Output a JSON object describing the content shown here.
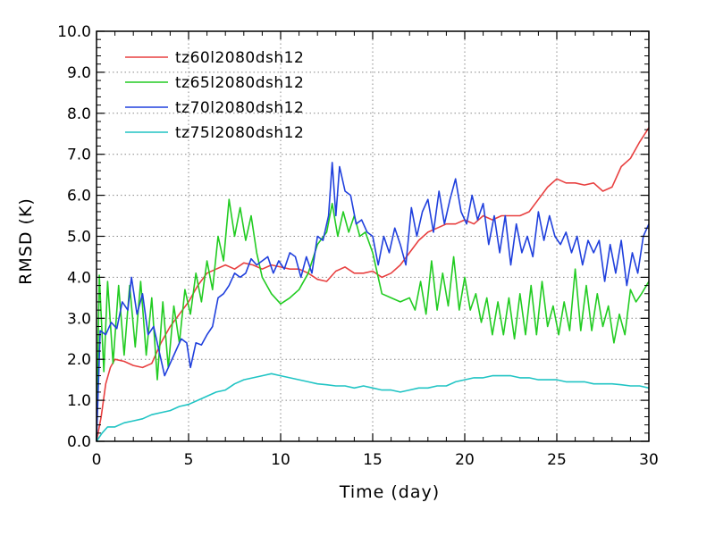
{
  "chart_data": {
    "type": "line",
    "xlabel": "Time (day)",
    "ylabel": "RMSD (K)",
    "xlim": [
      0,
      30
    ],
    "ylim": [
      0,
      10
    ],
    "grid": true,
    "legend_position": "top-left",
    "x_ticks": [
      "0",
      "5",
      "10",
      "15",
      "20",
      "25",
      "30"
    ],
    "y_ticks": [
      "0.0",
      "1.0",
      "2.0",
      "3.0",
      "4.0",
      "5.0",
      "6.0",
      "7.0",
      "8.0",
      "9.0",
      "10.0"
    ],
    "series": [
      {
        "name": "tz60l2080dsh12",
        "color": "#e84040",
        "points": [
          [
            0,
            0
          ],
          [
            0.25,
            0.6
          ],
          [
            0.5,
            1.4
          ],
          [
            0.75,
            1.8
          ],
          [
            1,
            2.0
          ],
          [
            1.5,
            1.95
          ],
          [
            2,
            1.85
          ],
          [
            2.5,
            1.8
          ],
          [
            3,
            1.9
          ],
          [
            3.5,
            2.4
          ],
          [
            4,
            2.8
          ],
          [
            4.5,
            3.1
          ],
          [
            5,
            3.4
          ],
          [
            5.5,
            3.8
          ],
          [
            6,
            4.1
          ],
          [
            6.5,
            4.2
          ],
          [
            7,
            4.3
          ],
          [
            7.5,
            4.2
          ],
          [
            8,
            4.35
          ],
          [
            8.5,
            4.3
          ],
          [
            9,
            4.2
          ],
          [
            9.5,
            4.3
          ],
          [
            10,
            4.25
          ],
          [
            10.5,
            4.2
          ],
          [
            11,
            4.2
          ],
          [
            11.5,
            4.1
          ],
          [
            12,
            3.95
          ],
          [
            12.5,
            3.9
          ],
          [
            13,
            4.15
          ],
          [
            13.5,
            4.25
          ],
          [
            14,
            4.1
          ],
          [
            14.5,
            4.1
          ],
          [
            15,
            4.15
          ],
          [
            15.5,
            4.0
          ],
          [
            16,
            4.1
          ],
          [
            16.5,
            4.3
          ],
          [
            17,
            4.6
          ],
          [
            17.5,
            4.9
          ],
          [
            18,
            5.1
          ],
          [
            18.5,
            5.2
          ],
          [
            19,
            5.3
          ],
          [
            19.5,
            5.3
          ],
          [
            20,
            5.4
          ],
          [
            20.5,
            5.3
          ],
          [
            21,
            5.5
          ],
          [
            21.5,
            5.4
          ],
          [
            22,
            5.5
          ],
          [
            22.5,
            5.5
          ],
          [
            23,
            5.5
          ],
          [
            23.5,
            5.6
          ],
          [
            24,
            5.9
          ],
          [
            24.5,
            6.2
          ],
          [
            25,
            6.4
          ],
          [
            25.5,
            6.3
          ],
          [
            26,
            6.3
          ],
          [
            26.5,
            6.25
          ],
          [
            27,
            6.3
          ],
          [
            27.5,
            6.1
          ],
          [
            28,
            6.2
          ],
          [
            28.5,
            6.7
          ],
          [
            29,
            6.9
          ],
          [
            29.5,
            7.3
          ],
          [
            30,
            7.65
          ]
        ]
      },
      {
        "name": "tz65l2080dsh12",
        "color": "#22cc22",
        "points": [
          [
            0,
            0
          ],
          [
            0.15,
            4.05
          ],
          [
            0.4,
            1.7
          ],
          [
            0.6,
            3.9
          ],
          [
            0.9,
            1.9
          ],
          [
            1.2,
            3.8
          ],
          [
            1.5,
            2.1
          ],
          [
            1.8,
            3.8
          ],
          [
            2.1,
            2.3
          ],
          [
            2.4,
            3.9
          ],
          [
            2.7,
            2.1
          ],
          [
            3,
            3.5
          ],
          [
            3.3,
            1.5
          ],
          [
            3.6,
            3.4
          ],
          [
            3.9,
            1.8
          ],
          [
            4.2,
            3.3
          ],
          [
            4.5,
            2.4
          ],
          [
            4.8,
            3.7
          ],
          [
            5.1,
            3.1
          ],
          [
            5.4,
            4.1
          ],
          [
            5.7,
            3.4
          ],
          [
            6,
            4.4
          ],
          [
            6.3,
            3.7
          ],
          [
            6.6,
            5.0
          ],
          [
            6.9,
            4.4
          ],
          [
            7.2,
            5.9
          ],
          [
            7.5,
            5.0
          ],
          [
            7.8,
            5.7
          ],
          [
            8.1,
            4.9
          ],
          [
            8.4,
            5.5
          ],
          [
            8.7,
            4.6
          ],
          [
            9,
            4.0
          ],
          [
            9.5,
            3.6
          ],
          [
            10,
            3.35
          ],
          [
            10.5,
            3.5
          ],
          [
            11,
            3.7
          ],
          [
            11.5,
            4.1
          ],
          [
            12,
            4.8
          ],
          [
            12.5,
            5.1
          ],
          [
            12.8,
            5.8
          ],
          [
            13.1,
            5.0
          ],
          [
            13.4,
            5.6
          ],
          [
            13.7,
            5.1
          ],
          [
            14,
            5.5
          ],
          [
            14.3,
            5.0
          ],
          [
            14.6,
            5.1
          ],
          [
            15,
            4.6
          ],
          [
            15.5,
            3.6
          ],
          [
            16,
            3.5
          ],
          [
            16.5,
            3.4
          ],
          [
            17,
            3.5
          ],
          [
            17.3,
            3.2
          ],
          [
            17.6,
            3.9
          ],
          [
            17.9,
            3.1
          ],
          [
            18.2,
            4.4
          ],
          [
            18.5,
            3.2
          ],
          [
            18.8,
            4.1
          ],
          [
            19.1,
            3.3
          ],
          [
            19.4,
            4.5
          ],
          [
            19.7,
            3.2
          ],
          [
            20,
            4.0
          ],
          [
            20.3,
            3.2
          ],
          [
            20.6,
            3.6
          ],
          [
            20.9,
            2.9
          ],
          [
            21.2,
            3.5
          ],
          [
            21.5,
            2.6
          ],
          [
            21.8,
            3.4
          ],
          [
            22.1,
            2.6
          ],
          [
            22.4,
            3.5
          ],
          [
            22.7,
            2.5
          ],
          [
            23,
            3.6
          ],
          [
            23.3,
            2.6
          ],
          [
            23.6,
            3.8
          ],
          [
            23.9,
            2.6
          ],
          [
            24.2,
            3.9
          ],
          [
            24.5,
            2.8
          ],
          [
            24.8,
            3.3
          ],
          [
            25.1,
            2.6
          ],
          [
            25.4,
            3.4
          ],
          [
            25.7,
            2.7
          ],
          [
            26,
            4.2
          ],
          [
            26.3,
            2.7
          ],
          [
            26.6,
            3.8
          ],
          [
            26.9,
            2.7
          ],
          [
            27.2,
            3.6
          ],
          [
            27.5,
            2.8
          ],
          [
            27.8,
            3.3
          ],
          [
            28.1,
            2.4
          ],
          [
            28.4,
            3.1
          ],
          [
            28.7,
            2.6
          ],
          [
            29,
            3.7
          ],
          [
            29.3,
            3.4
          ],
          [
            29.6,
            3.6
          ],
          [
            30,
            3.9
          ]
        ]
      },
      {
        "name": "tz70l2080dsh12",
        "color": "#2040dd",
        "points": [
          [
            0,
            0
          ],
          [
            0.2,
            2.7
          ],
          [
            0.5,
            2.6
          ],
          [
            0.8,
            2.9
          ],
          [
            1.1,
            2.75
          ],
          [
            1.4,
            3.4
          ],
          [
            1.7,
            3.2
          ],
          [
            1.9,
            4.0
          ],
          [
            2.2,
            3.1
          ],
          [
            2.5,
            3.6
          ],
          [
            2.8,
            2.6
          ],
          [
            3.1,
            2.8
          ],
          [
            3.4,
            2.2
          ],
          [
            3.7,
            1.6
          ],
          [
            4,
            1.9
          ],
          [
            4.3,
            2.2
          ],
          [
            4.6,
            2.5
          ],
          [
            4.9,
            2.4
          ],
          [
            5.1,
            1.8
          ],
          [
            5.4,
            2.4
          ],
          [
            5.7,
            2.35
          ],
          [
            6,
            2.6
          ],
          [
            6.3,
            2.8
          ],
          [
            6.6,
            3.5
          ],
          [
            6.9,
            3.6
          ],
          [
            7.2,
            3.8
          ],
          [
            7.5,
            4.1
          ],
          [
            7.8,
            4.0
          ],
          [
            8.1,
            4.1
          ],
          [
            8.4,
            4.45
          ],
          [
            8.7,
            4.3
          ],
          [
            9,
            4.4
          ],
          [
            9.3,
            4.5
          ],
          [
            9.6,
            4.1
          ],
          [
            9.9,
            4.4
          ],
          [
            10.2,
            4.2
          ],
          [
            10.5,
            4.6
          ],
          [
            10.8,
            4.5
          ],
          [
            11.1,
            4.0
          ],
          [
            11.4,
            4.5
          ],
          [
            11.7,
            4.1
          ],
          [
            12,
            5.0
          ],
          [
            12.3,
            4.9
          ],
          [
            12.6,
            5.5
          ],
          [
            12.8,
            6.8
          ],
          [
            13,
            5.5
          ],
          [
            13.2,
            6.7
          ],
          [
            13.5,
            6.1
          ],
          [
            13.8,
            6.0
          ],
          [
            14.1,
            5.3
          ],
          [
            14.4,
            5.4
          ],
          [
            14.7,
            5.1
          ],
          [
            15,
            5.0
          ],
          [
            15.3,
            4.3
          ],
          [
            15.6,
            5.0
          ],
          [
            15.9,
            4.6
          ],
          [
            16.2,
            5.2
          ],
          [
            16.5,
            4.8
          ],
          [
            16.8,
            4.3
          ],
          [
            17.1,
            5.7
          ],
          [
            17.4,
            5.0
          ],
          [
            17.7,
            5.6
          ],
          [
            18,
            5.9
          ],
          [
            18.3,
            5.1
          ],
          [
            18.6,
            6.1
          ],
          [
            18.9,
            5.3
          ],
          [
            19.2,
            5.9
          ],
          [
            19.5,
            6.4
          ],
          [
            19.8,
            5.6
          ],
          [
            20.1,
            5.3
          ],
          [
            20.4,
            6.0
          ],
          [
            20.7,
            5.4
          ],
          [
            21,
            5.8
          ],
          [
            21.3,
            4.8
          ],
          [
            21.6,
            5.5
          ],
          [
            21.9,
            4.6
          ],
          [
            22.2,
            5.5
          ],
          [
            22.5,
            4.3
          ],
          [
            22.8,
            5.3
          ],
          [
            23.1,
            4.6
          ],
          [
            23.4,
            5.0
          ],
          [
            23.7,
            4.5
          ],
          [
            24,
            5.6
          ],
          [
            24.3,
            4.9
          ],
          [
            24.6,
            5.5
          ],
          [
            24.9,
            5.0
          ],
          [
            25.2,
            4.8
          ],
          [
            25.5,
            5.1
          ],
          [
            25.8,
            4.6
          ],
          [
            26.1,
            5.0
          ],
          [
            26.4,
            4.3
          ],
          [
            26.7,
            4.9
          ],
          [
            27,
            4.6
          ],
          [
            27.3,
            4.9
          ],
          [
            27.6,
            3.9
          ],
          [
            27.9,
            4.8
          ],
          [
            28.2,
            4.1
          ],
          [
            28.5,
            4.9
          ],
          [
            28.8,
            3.8
          ],
          [
            29.1,
            4.6
          ],
          [
            29.4,
            4.1
          ],
          [
            29.7,
            5.0
          ],
          [
            30,
            5.3
          ]
        ]
      },
      {
        "name": "tz75l2080dsh12",
        "color": "#20c4c4",
        "points": [
          [
            0,
            0
          ],
          [
            0.3,
            0.2
          ],
          [
            0.6,
            0.35
          ],
          [
            1,
            0.35
          ],
          [
            1.5,
            0.45
          ],
          [
            2,
            0.5
          ],
          [
            2.5,
            0.55
          ],
          [
            3,
            0.65
          ],
          [
            3.5,
            0.7
          ],
          [
            4,
            0.75
          ],
          [
            4.5,
            0.85
          ],
          [
            5,
            0.9
          ],
          [
            5.5,
            1.0
          ],
          [
            6,
            1.1
          ],
          [
            6.5,
            1.2
          ],
          [
            7,
            1.25
          ],
          [
            7.5,
            1.4
          ],
          [
            8,
            1.5
          ],
          [
            8.5,
            1.55
          ],
          [
            9,
            1.6
          ],
          [
            9.5,
            1.65
          ],
          [
            10,
            1.6
          ],
          [
            10.5,
            1.55
          ],
          [
            11,
            1.5
          ],
          [
            11.5,
            1.45
          ],
          [
            12,
            1.4
          ],
          [
            12.5,
            1.38
          ],
          [
            13,
            1.35
          ],
          [
            13.5,
            1.35
          ],
          [
            14,
            1.3
          ],
          [
            14.5,
            1.35
          ],
          [
            15,
            1.3
          ],
          [
            15.5,
            1.25
          ],
          [
            16,
            1.25
          ],
          [
            16.5,
            1.2
          ],
          [
            17,
            1.25
          ],
          [
            17.5,
            1.3
          ],
          [
            18,
            1.3
          ],
          [
            18.5,
            1.35
          ],
          [
            19,
            1.35
          ],
          [
            19.5,
            1.45
          ],
          [
            20,
            1.5
          ],
          [
            20.5,
            1.55
          ],
          [
            21,
            1.55
          ],
          [
            21.5,
            1.6
          ],
          [
            22,
            1.6
          ],
          [
            22.5,
            1.6
          ],
          [
            23,
            1.55
          ],
          [
            23.5,
            1.55
          ],
          [
            24,
            1.5
          ],
          [
            24.5,
            1.5
          ],
          [
            25,
            1.5
          ],
          [
            25.5,
            1.45
          ],
          [
            26,
            1.45
          ],
          [
            26.5,
            1.45
          ],
          [
            27,
            1.4
          ],
          [
            27.5,
            1.4
          ],
          [
            28,
            1.4
          ],
          [
            28.5,
            1.38
          ],
          [
            29,
            1.35
          ],
          [
            29.5,
            1.35
          ],
          [
            30,
            1.3
          ]
        ]
      }
    ]
  }
}
